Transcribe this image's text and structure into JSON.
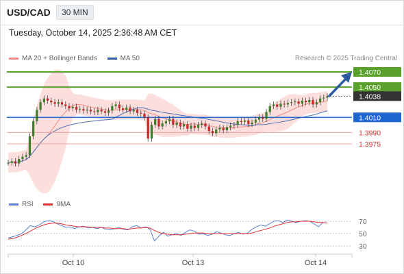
{
  "header": {
    "symbol": "USD/CAD",
    "interval": "30 MIN"
  },
  "datetime": "Tuesday, October 14, 2025 2:36:48 AM CET",
  "legend": [
    {
      "label": "MA 20 + Bollinger Bands",
      "color": "#f28b82"
    },
    {
      "label": "MA 50",
      "color": "#2c5aa0"
    }
  ],
  "credit": "Research © 2025 Trading Central",
  "rsi_legend": [
    {
      "label": "RSI",
      "color": "#5b7fd1"
    },
    {
      "label": "9MA",
      "color": "#e03030"
    }
  ],
  "chart_data": {
    "type": "candlestick",
    "price_levels": [
      {
        "label": "1.4070",
        "value": 1.407,
        "kind": "target",
        "color": "#5aa02c"
      },
      {
        "label": "1.4050",
        "value": 1.405,
        "kind": "target",
        "color": "#5aa02c"
      },
      {
        "label": "1.4038",
        "value": 1.4038,
        "kind": "last",
        "color": "#333333"
      },
      {
        "label": "1.4010",
        "value": 1.401,
        "kind": "pivot",
        "color": "#1f66d1"
      },
      {
        "label": "1.3990",
        "value": 1.399,
        "kind": "support",
        "color": "#e03030"
      },
      {
        "label": "1.3975",
        "value": 1.3975,
        "kind": "support",
        "color": "#e03030"
      }
    ],
    "x_ticks": [
      "Oct 10",
      "Oct 13",
      "Oct 14"
    ],
    "price_series": [
      1.395,
      1.3952,
      1.3949,
      1.3955,
      1.3958,
      1.396,
      1.3985,
      1.4005,
      1.402,
      1.403,
      1.4035,
      1.4032,
      1.403,
      1.4028,
      1.403,
      1.4027,
      1.4025,
      1.4022,
      1.4024,
      1.402,
      1.4021,
      1.4019,
      1.402,
      1.4018,
      1.4017,
      1.402,
      1.4018,
      1.4016,
      1.4019,
      1.4025,
      1.4027,
      1.4022,
      1.402,
      1.4023,
      1.4018,
      1.402,
      1.4016,
      1.4015,
      1.401,
      1.3982,
      1.4,
      1.4008,
      1.3998,
      1.4002,
      1.4005,
      1.4008,
      1.4,
      1.4003,
      1.3998,
      1.4001,
      1.3995,
      1.3999,
      1.3996,
      1.4,
      1.4002,
      1.3998,
      1.3992,
      1.3989,
      1.3994,
      1.3996,
      1.3993,
      1.3997,
      1.3999,
      1.4,
      1.4005,
      1.4004,
      1.4006,
      1.4001,
      1.4003,
      1.4007,
      1.401,
      1.4008,
      1.4017,
      1.4025,
      1.4027,
      1.4024,
      1.4028,
      1.4027,
      1.4029,
      1.403,
      1.4031,
      1.4028,
      1.4032,
      1.403,
      1.4033,
      1.4027,
      1.403,
      1.4035,
      1.4036,
      1.4038
    ],
    "rsi": {
      "levels": [
        70,
        50,
        30
      ],
      "rsi_values": [
        43,
        45,
        47,
        50,
        56,
        63,
        61,
        64,
        69,
        71,
        70,
        66,
        63,
        60,
        61,
        58,
        61,
        62,
        59,
        60,
        58,
        60,
        57,
        56,
        58,
        60,
        57,
        56,
        61,
        63,
        59,
        61,
        57,
        38,
        46,
        52,
        46,
        48,
        50,
        47,
        52,
        56,
        54,
        49,
        50,
        47,
        49,
        53,
        51,
        48,
        47,
        50,
        52,
        49,
        51,
        57,
        61,
        64,
        62,
        66,
        70,
        71,
        68,
        72,
        70,
        68,
        70,
        71,
        70,
        66,
        61,
        68,
        67
      ],
      "ma_values": [
        41,
        42,
        44,
        47,
        50,
        54,
        58,
        61,
        64,
        66,
        67,
        67,
        66,
        64,
        63,
        62,
        61,
        61,
        61,
        60,
        60,
        60,
        59,
        59,
        58,
        58,
        58,
        57,
        58,
        59,
        59,
        60,
        59,
        55,
        52,
        50,
        49,
        48,
        48,
        48,
        49,
        50,
        51,
        51,
        51,
        50,
        50,
        50,
        50,
        50,
        50,
        50,
        50,
        50,
        50,
        51,
        53,
        55,
        57,
        59,
        62,
        64,
        66,
        68,
        69,
        69,
        70,
        70,
        70,
        69,
        68,
        68,
        67
      ]
    }
  }
}
